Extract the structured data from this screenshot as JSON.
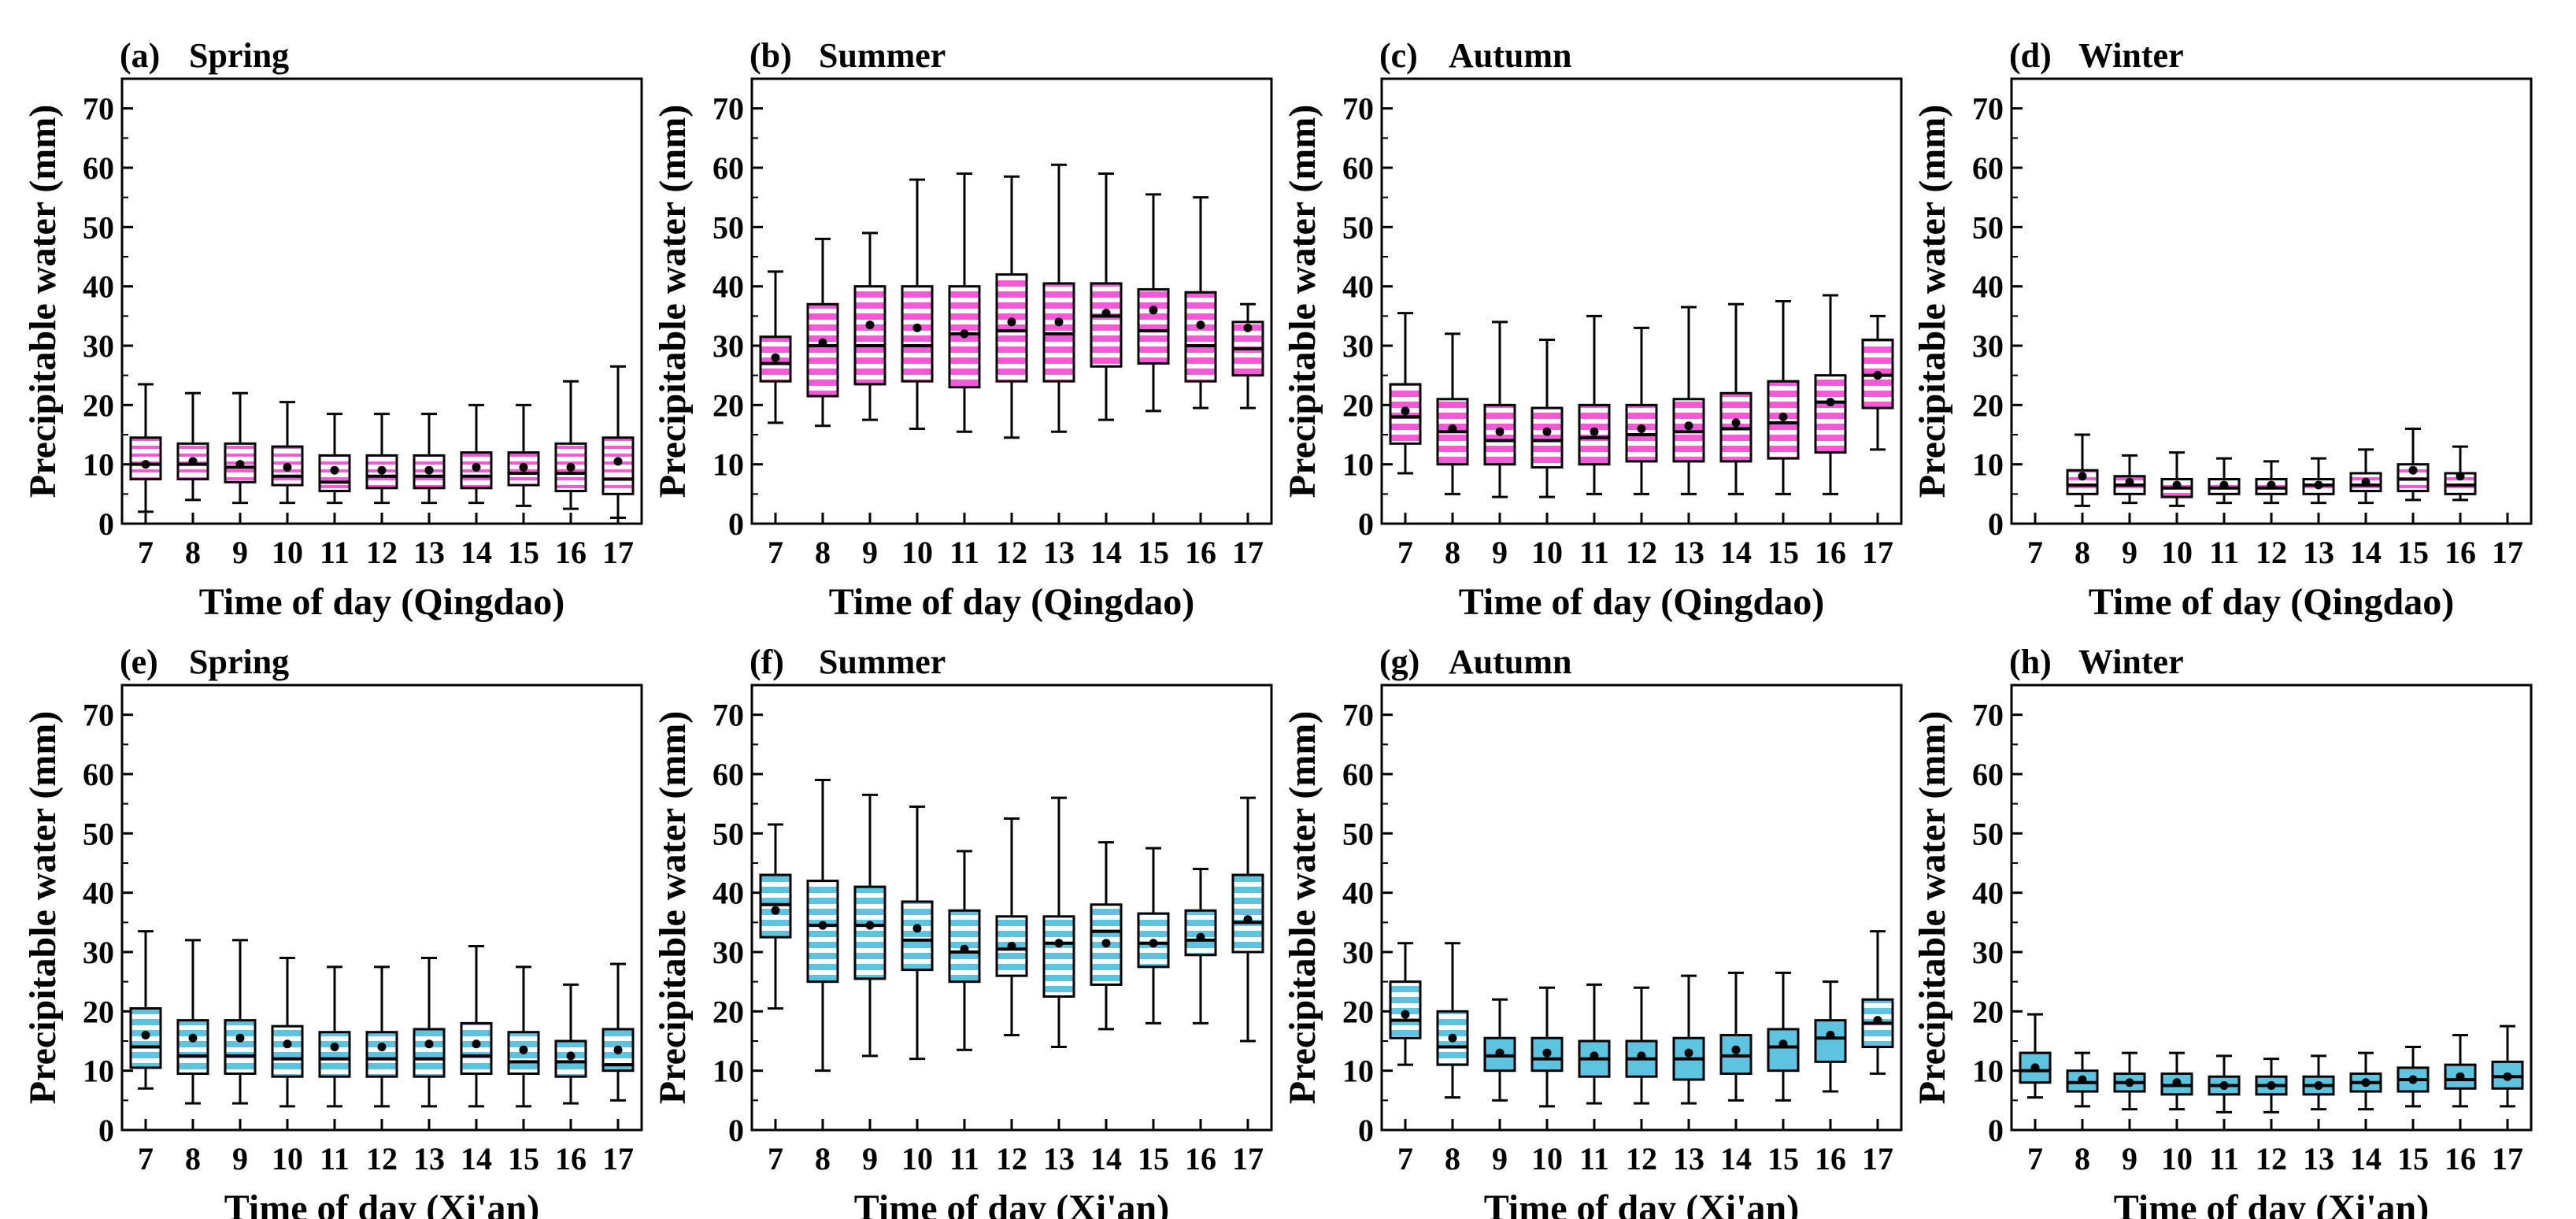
{
  "figure": {
    "colors": {
      "qingdao_fill": "#f25ad8",
      "xian_fill": "#5ec3de",
      "stripe": "#ffffff",
      "axis": "#000000"
    }
  },
  "chart_data": [
    {
      "type": "boxplot",
      "panel": "(a)",
      "title": "Spring",
      "xlabel": "Time of day (Qingdao)",
      "ylabel": "Precipitable water (mm)",
      "ylim": [
        0,
        75
      ],
      "yticks": [
        0,
        10,
        20,
        30,
        40,
        50,
        60,
        70
      ],
      "categories": [
        "7",
        "8",
        "9",
        "10",
        "11",
        "12",
        "13",
        "14",
        "15",
        "16",
        "17"
      ],
      "color": "qingdao",
      "pattern": "dense",
      "boxes": [
        {
          "min": 2,
          "q1": 7.5,
          "median": 10,
          "q3": 14.5,
          "max": 23.5,
          "mean": 10
        },
        {
          "min": 4,
          "q1": 7.5,
          "median": 10,
          "q3": 13.5,
          "max": 22,
          "mean": 10.5
        },
        {
          "min": 3.5,
          "q1": 7,
          "median": 9.5,
          "q3": 13.5,
          "max": 22,
          "mean": 10
        },
        {
          "min": 3.5,
          "q1": 6.5,
          "median": 8,
          "q3": 13,
          "max": 20.5,
          "mean": 9.5
        },
        {
          "min": 3.5,
          "q1": 5.5,
          "median": 7,
          "q3": 11.5,
          "max": 18.5,
          "mean": 9
        },
        {
          "min": 3.5,
          "q1": 6,
          "median": 8,
          "q3": 11.5,
          "max": 18.5,
          "mean": 9
        },
        {
          "min": 3.5,
          "q1": 6,
          "median": 8,
          "q3": 11.5,
          "max": 18.5,
          "mean": 9
        },
        {
          "min": 3.5,
          "q1": 6,
          "median": 8,
          "q3": 12,
          "max": 20,
          "mean": 9.5
        },
        {
          "min": 3,
          "q1": 6.5,
          "median": 8.5,
          "q3": 12,
          "max": 20,
          "mean": 9.5
        },
        {
          "min": 2.5,
          "q1": 5.5,
          "median": 8.5,
          "q3": 13.5,
          "max": 24,
          "mean": 9.5
        },
        {
          "min": 1,
          "q1": 5,
          "median": 7.5,
          "q3": 14.5,
          "max": 26.5,
          "mean": 10.5
        }
      ]
    },
    {
      "type": "boxplot",
      "panel": "(b)",
      "title": "Summer",
      "xlabel": "Time of day (Qingdao)",
      "ylabel": "Precipitable water (mm)",
      "ylim": [
        0,
        75
      ],
      "yticks": [
        0,
        10,
        20,
        30,
        40,
        50,
        60,
        70
      ],
      "categories": [
        "7",
        "8",
        "9",
        "10",
        "11",
        "12",
        "13",
        "14",
        "15",
        "16",
        "17"
      ],
      "color": "qingdao",
      "pattern": "sparse",
      "boxes": [
        {
          "min": 17,
          "q1": 24,
          "median": 27,
          "q3": 31.5,
          "max": 42.5,
          "mean": 28
        },
        {
          "min": 16.5,
          "q1": 21.5,
          "median": 30,
          "q3": 37,
          "max": 48,
          "mean": 30.5
        },
        {
          "min": 17.5,
          "q1": 23.5,
          "median": 30,
          "q3": 40,
          "max": 49,
          "mean": 33.5
        },
        {
          "min": 16,
          "q1": 24,
          "median": 30,
          "q3": 40,
          "max": 58,
          "mean": 33
        },
        {
          "min": 15.5,
          "q1": 23,
          "median": 32,
          "q3": 40,
          "max": 59,
          "mean": 32
        },
        {
          "min": 14.5,
          "q1": 24,
          "median": 32.5,
          "q3": 42,
          "max": 58.5,
          "mean": 34
        },
        {
          "min": 15.5,
          "q1": 24,
          "median": 32,
          "q3": 40.5,
          "max": 60.5,
          "mean": 34
        },
        {
          "min": 17.5,
          "q1": 26.5,
          "median": 35,
          "q3": 40.5,
          "max": 59,
          "mean": 35.5
        },
        {
          "min": 19,
          "q1": 27,
          "median": 32.5,
          "q3": 39.5,
          "max": 55.5,
          "mean": 36
        },
        {
          "min": 19.5,
          "q1": 24,
          "median": 30,
          "q3": 39,
          "max": 55,
          "mean": 33.5
        },
        {
          "min": 19.5,
          "q1": 25,
          "median": 29.5,
          "q3": 34,
          "max": 37,
          "mean": 33
        }
      ]
    },
    {
      "type": "boxplot",
      "panel": "(c)",
      "title": "Autumn",
      "xlabel": "Time of day (Qingdao)",
      "ylabel": "Precipitable water (mm)",
      "ylim": [
        0,
        75
      ],
      "yticks": [
        0,
        10,
        20,
        30,
        40,
        50,
        60,
        70
      ],
      "categories": [
        "7",
        "8",
        "9",
        "10",
        "11",
        "12",
        "13",
        "14",
        "15",
        "16",
        "17"
      ],
      "color": "qingdao",
      "pattern": "sparse",
      "boxes": [
        {
          "min": 8.5,
          "q1": 13.5,
          "median": 18,
          "q3": 23.5,
          "max": 35.5,
          "mean": 19
        },
        {
          "min": 5,
          "q1": 10,
          "median": 15.5,
          "q3": 21,
          "max": 32,
          "mean": 16
        },
        {
          "min": 4.5,
          "q1": 10,
          "median": 14,
          "q3": 20,
          "max": 34,
          "mean": 15.5
        },
        {
          "min": 4.5,
          "q1": 9.5,
          "median": 14,
          "q3": 19.5,
          "max": 31,
          "mean": 15.5
        },
        {
          "min": 5,
          "q1": 10,
          "median": 14.5,
          "q3": 20,
          "max": 35,
          "mean": 15.5
        },
        {
          "min": 5,
          "q1": 10.5,
          "median": 15,
          "q3": 20,
          "max": 33,
          "mean": 16
        },
        {
          "min": 5,
          "q1": 10.5,
          "median": 15.5,
          "q3": 21,
          "max": 36.5,
          "mean": 16.5
        },
        {
          "min": 5,
          "q1": 10.5,
          "median": 16,
          "q3": 22,
          "max": 37,
          "mean": 17
        },
        {
          "min": 5,
          "q1": 11,
          "median": 17,
          "q3": 24,
          "max": 37.5,
          "mean": 18
        },
        {
          "min": 5,
          "q1": 12,
          "median": 20.5,
          "q3": 25,
          "max": 38.5,
          "mean": 20.5
        },
        {
          "min": 12.5,
          "q1": 19.5,
          "median": 25,
          "q3": 31,
          "max": 35,
          "mean": 25
        }
      ]
    },
    {
      "type": "boxplot",
      "panel": "(d)",
      "title": "Winter",
      "xlabel": "Time of day (Qingdao)",
      "ylabel": "Precipitable water (mm)",
      "ylim": [
        0,
        75
      ],
      "yticks": [
        0,
        10,
        20,
        30,
        40,
        50,
        60,
        70
      ],
      "categories": [
        "7",
        "8",
        "9",
        "10",
        "11",
        "12",
        "13",
        "14",
        "15",
        "16",
        "17"
      ],
      "color": "qingdao",
      "pattern": "dense",
      "boxes": [
        null,
        {
          "min": 3,
          "q1": 5,
          "median": 6.5,
          "q3": 9,
          "max": 15,
          "mean": 8
        },
        {
          "min": 3.5,
          "q1": 5,
          "median": 6.5,
          "q3": 8,
          "max": 11.5,
          "mean": 7
        },
        {
          "min": 3,
          "q1": 4.5,
          "median": 6,
          "q3": 7.5,
          "max": 12,
          "mean": 6.5
        },
        {
          "min": 3.5,
          "q1": 5,
          "median": 6,
          "q3": 7.5,
          "max": 11,
          "mean": 6.5
        },
        {
          "min": 3.5,
          "q1": 5,
          "median": 6,
          "q3": 7.5,
          "max": 10.5,
          "mean": 6.5
        },
        {
          "min": 3.5,
          "q1": 5,
          "median": 6.5,
          "q3": 7.5,
          "max": 11,
          "mean": 6.5
        },
        {
          "min": 3.5,
          "q1": 5.5,
          "median": 6.5,
          "q3": 8.5,
          "max": 12.5,
          "mean": 7
        },
        {
          "min": 4,
          "q1": 5.5,
          "median": 7.5,
          "q3": 10,
          "max": 16,
          "mean": 9
        },
        {
          "min": 4,
          "q1": 5,
          "median": 6.5,
          "q3": 8.5,
          "max": 13,
          "mean": 8
        },
        null
      ]
    },
    {
      "type": "boxplot",
      "panel": "(e)",
      "title": "Spring",
      "xlabel": "Time of day (Xi'an)",
      "ylabel": "Precipitable water (mm)",
      "ylim": [
        0,
        75
      ],
      "yticks": [
        0,
        10,
        20,
        30,
        40,
        50,
        60,
        70
      ],
      "categories": [
        "7",
        "8",
        "9",
        "10",
        "11",
        "12",
        "13",
        "14",
        "15",
        "16",
        "17"
      ],
      "color": "xian",
      "pattern": "sparse",
      "boxes": [
        {
          "min": 7,
          "q1": 10.5,
          "median": 14,
          "q3": 20.5,
          "max": 33.5,
          "mean": 16
        },
        {
          "min": 4.5,
          "q1": 9.5,
          "median": 12.5,
          "q3": 18.5,
          "max": 32,
          "mean": 15.5
        },
        {
          "min": 4.5,
          "q1": 9.5,
          "median": 12.5,
          "q3": 18.5,
          "max": 32,
          "mean": 15.5
        },
        {
          "min": 4,
          "q1": 9,
          "median": 12,
          "q3": 17.5,
          "max": 29,
          "mean": 14.5
        },
        {
          "min": 4,
          "q1": 9,
          "median": 12,
          "q3": 16.5,
          "max": 27.5,
          "mean": 14
        },
        {
          "min": 4,
          "q1": 9,
          "median": 12,
          "q3": 16.5,
          "max": 27.5,
          "mean": 14
        },
        {
          "min": 4,
          "q1": 9,
          "median": 12,
          "q3": 17,
          "max": 29,
          "mean": 14.5
        },
        {
          "min": 4,
          "q1": 9.5,
          "median": 12.5,
          "q3": 18,
          "max": 31,
          "mean": 14.5
        },
        {
          "min": 4,
          "q1": 9.5,
          "median": 11.5,
          "q3": 16.5,
          "max": 27.5,
          "mean": 13.5
        },
        {
          "min": 4.5,
          "q1": 9,
          "median": 11.5,
          "q3": 15,
          "max": 24.5,
          "mean": 12.5
        },
        {
          "min": 5,
          "q1": 10,
          "median": 11,
          "q3": 17,
          "max": 28,
          "mean": 13.5
        }
      ]
    },
    {
      "type": "boxplot",
      "panel": "(f)",
      "title": "Summer",
      "xlabel": "Time of day (Xi'an)",
      "ylabel": "Precipitable water (mm)",
      "ylim": [
        0,
        75
      ],
      "yticks": [
        0,
        10,
        20,
        30,
        40,
        50,
        60,
        70
      ],
      "categories": [
        "7",
        "8",
        "9",
        "10",
        "11",
        "12",
        "13",
        "14",
        "15",
        "16",
        "17"
      ],
      "color": "xian",
      "pattern": "sparse",
      "boxes": [
        {
          "min": 20.5,
          "q1": 32.5,
          "median": 38,
          "q3": 43,
          "max": 51.5,
          "mean": 37
        },
        {
          "min": 10,
          "q1": 25,
          "median": 34.5,
          "q3": 42,
          "max": 59,
          "mean": 34.5
        },
        {
          "min": 12.5,
          "q1": 25.5,
          "median": 34.5,
          "q3": 41,
          "max": 56.5,
          "mean": 34.5
        },
        {
          "min": 12,
          "q1": 27,
          "median": 32,
          "q3": 38.5,
          "max": 54.5,
          "mean": 34
        },
        {
          "min": 13.5,
          "q1": 25,
          "median": 30,
          "q3": 37,
          "max": 47,
          "mean": 30.5
        },
        {
          "min": 16,
          "q1": 26,
          "median": 30.5,
          "q3": 36,
          "max": 52.5,
          "mean": 31
        },
        {
          "min": 14,
          "q1": 22.5,
          "median": 31.5,
          "q3": 36,
          "max": 56,
          "mean": 31.5
        },
        {
          "min": 17,
          "q1": 24.5,
          "median": 33.5,
          "q3": 38,
          "max": 48.5,
          "mean": 31.5
        },
        {
          "min": 18,
          "q1": 27.5,
          "median": 31.5,
          "q3": 36.5,
          "max": 47.5,
          "mean": 31.5
        },
        {
          "min": 18,
          "q1": 29.5,
          "median": 32,
          "q3": 37,
          "max": 44,
          "mean": 32.5
        },
        {
          "min": 15,
          "q1": 30,
          "median": 35,
          "q3": 43,
          "max": 56,
          "mean": 35.5
        }
      ]
    },
    {
      "type": "boxplot",
      "panel": "(g)",
      "title": "Autumn",
      "xlabel": "Time of day (Xi'an)",
      "ylabel": "Precipitable water (mm)",
      "ylim": [
        0,
        75
      ],
      "yticks": [
        0,
        10,
        20,
        30,
        40,
        50,
        60,
        70
      ],
      "categories": [
        "7",
        "8",
        "9",
        "10",
        "11",
        "12",
        "13",
        "14",
        "15",
        "16",
        "17"
      ],
      "color": "xian",
      "pattern": "mixed",
      "boxes": [
        {
          "min": 11,
          "q1": 15.5,
          "median": 18.5,
          "q3": 25,
          "max": 31.5,
          "mean": 19.5
        },
        {
          "min": 5.5,
          "q1": 11,
          "median": 14,
          "q3": 20,
          "max": 31.5,
          "mean": 15.5
        },
        {
          "min": 5,
          "q1": 10,
          "median": 12.5,
          "q3": 15.5,
          "max": 22,
          "mean": 13
        },
        {
          "min": 4,
          "q1": 10,
          "median": 12,
          "q3": 15.5,
          "max": 24,
          "mean": 13
        },
        {
          "min": 4.5,
          "q1": 9,
          "median": 12,
          "q3": 15,
          "max": 24.5,
          "mean": 12.5
        },
        {
          "min": 4.5,
          "q1": 9,
          "median": 12,
          "q3": 15,
          "max": 24,
          "mean": 12.5
        },
        {
          "min": 4.5,
          "q1": 8.5,
          "median": 12,
          "q3": 15.5,
          "max": 26,
          "mean": 13
        },
        {
          "min": 5,
          "q1": 9.5,
          "median": 12.5,
          "q3": 16,
          "max": 26.5,
          "mean": 13.5
        },
        {
          "min": 5,
          "q1": 10,
          "median": 14,
          "q3": 17,
          "max": 26.5,
          "mean": 14.5
        },
        {
          "min": 6.5,
          "q1": 11.5,
          "median": 15.5,
          "q3": 18.5,
          "max": 25,
          "mean": 16
        },
        {
          "min": 9.5,
          "q1": 14,
          "median": 18,
          "q3": 22,
          "max": 33.5,
          "mean": 18.5
        }
      ]
    },
    {
      "type": "boxplot",
      "panel": "(h)",
      "title": "Winter",
      "xlabel": "Time of day (Xi'an)",
      "ylabel": "Precipitable water (mm)",
      "ylim": [
        0,
        75
      ],
      "yticks": [
        0,
        10,
        20,
        30,
        40,
        50,
        60,
        70
      ],
      "categories": [
        "7",
        "8",
        "9",
        "10",
        "11",
        "12",
        "13",
        "14",
        "15",
        "16",
        "17"
      ],
      "color": "xian",
      "pattern": "solid",
      "boxes": [
        {
          "min": 5.5,
          "q1": 8,
          "median": 10,
          "q3": 13,
          "max": 19.5,
          "mean": 10.5
        },
        {
          "min": 4,
          "q1": 6.5,
          "median": 8,
          "q3": 10,
          "max": 13,
          "mean": 8.5
        },
        {
          "min": 3.5,
          "q1": 6.5,
          "median": 8,
          "q3": 9.5,
          "max": 13,
          "mean": 8
        },
        {
          "min": 3.5,
          "q1": 6,
          "median": 7.5,
          "q3": 9.5,
          "max": 13,
          "mean": 8
        },
        {
          "min": 3,
          "q1": 6,
          "median": 7.5,
          "q3": 9,
          "max": 12.5,
          "mean": 7.5
        },
        {
          "min": 3,
          "q1": 6,
          "median": 7.5,
          "q3": 9,
          "max": 12,
          "mean": 7.5
        },
        {
          "min": 3.5,
          "q1": 6,
          "median": 7.5,
          "q3": 9,
          "max": 12.5,
          "mean": 7.5
        },
        {
          "min": 3.5,
          "q1": 6.5,
          "median": 8,
          "q3": 9.5,
          "max": 13,
          "mean": 8
        },
        {
          "min": 4,
          "q1": 6.5,
          "median": 8.5,
          "q3": 10.5,
          "max": 14,
          "mean": 8.5
        },
        {
          "min": 4,
          "q1": 7,
          "median": 8.5,
          "q3": 11,
          "max": 16,
          "mean": 9
        },
        {
          "min": 4,
          "q1": 7,
          "median": 9,
          "q3": 11.5,
          "max": 17.5,
          "mean": 9
        }
      ]
    }
  ]
}
